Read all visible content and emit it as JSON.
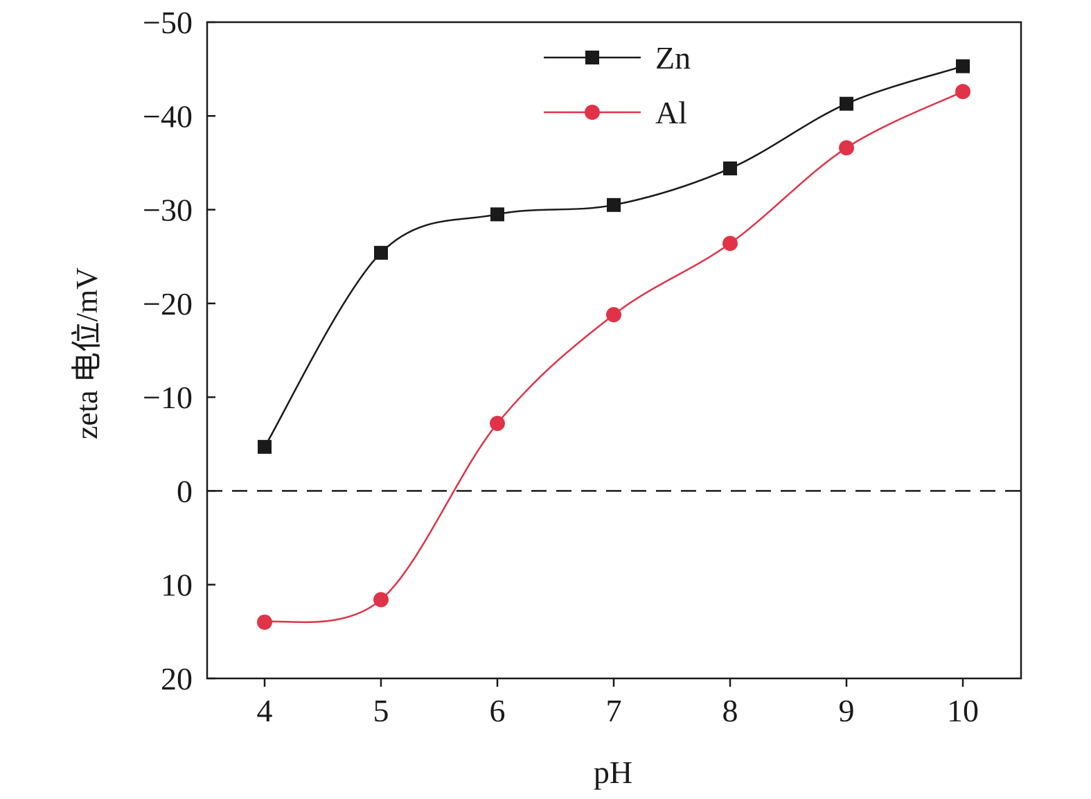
{
  "chart_data": {
    "type": "line",
    "title": "",
    "xlabel": "pH",
    "ylabel": "zeta 电位/mV",
    "x": [
      4,
      5,
      6,
      7,
      8,
      9,
      10
    ],
    "xlim": [
      3.5,
      10.5
    ],
    "ylim": [
      20,
      -50
    ],
    "y_inverted": true,
    "x_ticks": [
      4,
      5,
      6,
      7,
      8,
      9,
      10
    ],
    "x_tick_labels": [
      "4",
      "5",
      "6",
      "7",
      "8",
      "9",
      "10"
    ],
    "y_ticks": [
      -50,
      -40,
      -30,
      -20,
      -10,
      0,
      10,
      20
    ],
    "y_tick_labels": [
      "−50",
      "−40",
      "−30",
      "−20",
      "−10",
      "0",
      "10",
      "20"
    ],
    "reference_line": {
      "y": 0,
      "style": "dashed"
    },
    "grid": false,
    "legend_position": "top-center",
    "series": [
      {
        "name": "Zn",
        "color": "#1a1a1a",
        "marker": "square",
        "values": [
          -4.7,
          -25.4,
          -29.5,
          -30.5,
          -34.4,
          -41.3,
          -45.3
        ]
      },
      {
        "name": "Al",
        "color": "#e03348",
        "marker": "circle",
        "values": [
          14.0,
          11.6,
          -7.2,
          -18.8,
          -26.4,
          -36.6,
          -42.6
        ]
      }
    ]
  }
}
